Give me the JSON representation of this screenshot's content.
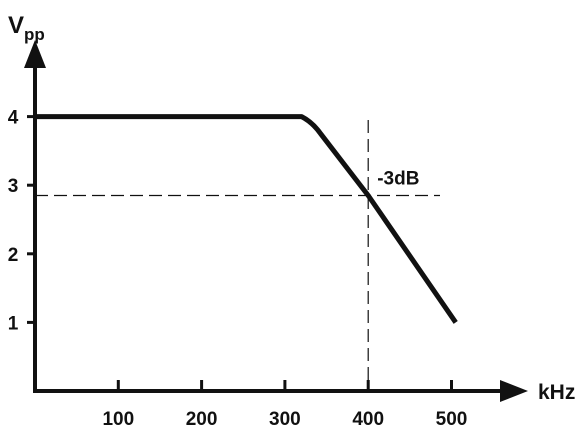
{
  "chart_data": {
    "type": "line",
    "title": "",
    "ylabel_main": "V",
    "ylabel_sub": "pp",
    "xlabel": "kHz",
    "x_ticks": [
      100,
      200,
      300,
      400,
      500
    ],
    "x_tick_labels": [
      "100",
      "200",
      "300",
      "400",
      "500"
    ],
    "y_ticks": [
      1,
      2,
      3,
      4
    ],
    "y_tick_labels": [
      "1",
      "2",
      "3",
      "4"
    ],
    "xlim": [
      0,
      570
    ],
    "ylim": [
      -0.05,
      5.1
    ],
    "grid": false,
    "series": [
      {
        "x": [
          0,
          320,
          333,
          343,
          400,
          505
        ],
        "y": [
          4.0,
          4.0,
          3.92,
          3.75,
          2.85,
          1.0
        ]
      }
    ],
    "annotation": {
      "text": "-3dB",
      "x": 400,
      "y": 2.85
    },
    "colors": {
      "line": "#111111",
      "axis": "#111111",
      "dashed": "#111111"
    }
  }
}
